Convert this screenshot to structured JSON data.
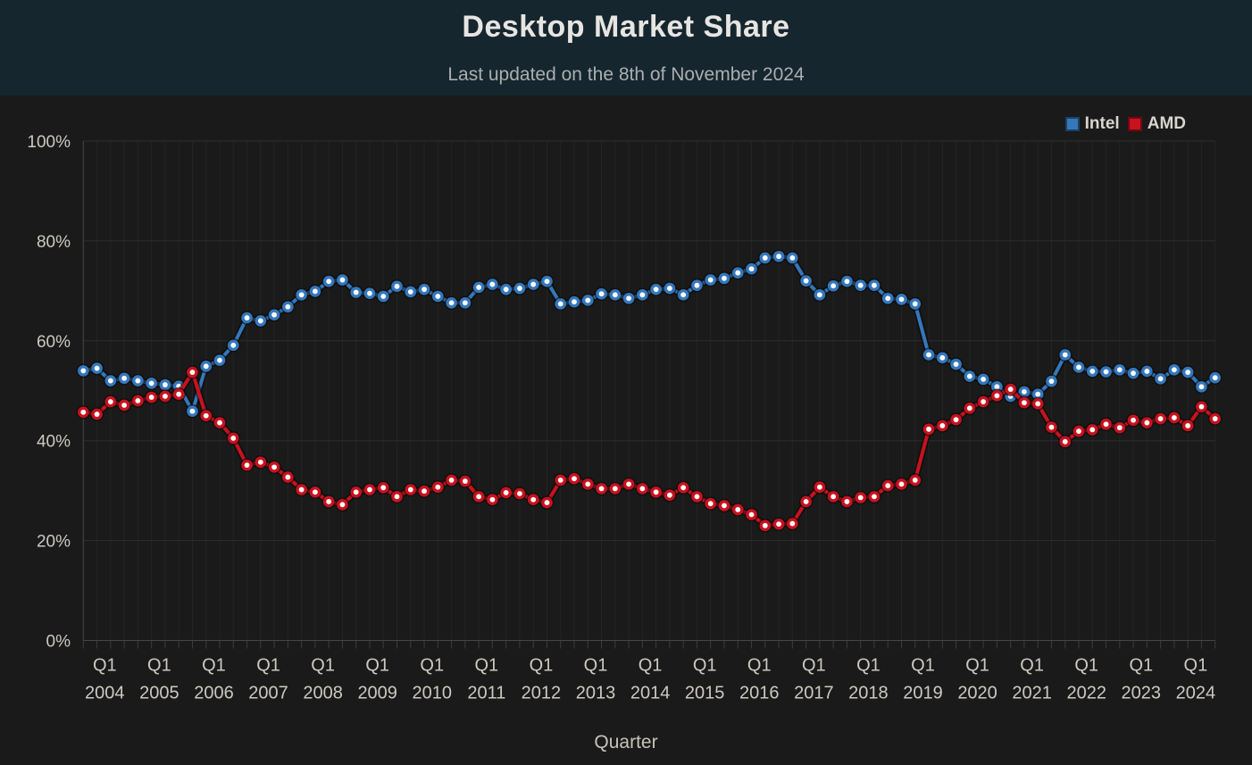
{
  "header": {
    "title": "Desktop Market Share",
    "subtitle": "Last updated on the 8th of November 2024"
  },
  "colors": {
    "header_bg": "#16262e",
    "chart_bg": "#1a1a1a",
    "grid_minor": "#242424",
    "grid_major": "#2d2d2d",
    "axis_line": "#454545",
    "tick_text": "#ccc9c1",
    "intel_blue": "#3577bb",
    "amd_red": "#c8121f"
  },
  "chart_data": {
    "type": "line",
    "title": "Desktop Market Share",
    "xlabel": "Quarter",
    "ylabel": "",
    "ylim": [
      0,
      100
    ],
    "y_tick_step": 20,
    "y_tick_labels": [
      "0%",
      "20%",
      "40%",
      "60%",
      "80%",
      "100%"
    ],
    "x_tick_every": 4,
    "grid": true,
    "legend_position": "top-right",
    "categories": [
      "2004 Q1",
      "2004 Q2",
      "2004 Q3",
      "2004 Q4",
      "2005 Q1",
      "2005 Q2",
      "2005 Q3",
      "2005 Q4",
      "2006 Q1",
      "2006 Q2",
      "2006 Q3",
      "2006 Q4",
      "2007 Q1",
      "2007 Q2",
      "2007 Q3",
      "2007 Q4",
      "2008 Q1",
      "2008 Q2",
      "2008 Q3",
      "2008 Q4",
      "2009 Q1",
      "2009 Q2",
      "2009 Q3",
      "2009 Q4",
      "2010 Q1",
      "2010 Q2",
      "2010 Q3",
      "2010 Q4",
      "2011 Q1",
      "2011 Q2",
      "2011 Q3",
      "2011 Q4",
      "2012 Q1",
      "2012 Q2",
      "2012 Q3",
      "2012 Q4",
      "2013 Q1",
      "2013 Q2",
      "2013 Q3",
      "2013 Q4",
      "2014 Q1",
      "2014 Q2",
      "2014 Q3",
      "2014 Q4",
      "2015 Q1",
      "2015 Q2",
      "2015 Q3",
      "2015 Q4",
      "2016 Q1",
      "2016 Q2",
      "2016 Q3",
      "2016 Q4",
      "2017 Q1",
      "2017 Q2",
      "2017 Q3",
      "2017 Q4",
      "2018 Q1",
      "2018 Q2",
      "2018 Q3",
      "2018 Q4",
      "2019 Q1",
      "2019 Q2",
      "2019 Q3",
      "2019 Q4",
      "2020 Q1",
      "2020 Q2",
      "2020 Q3",
      "2020 Q4",
      "2021 Q1",
      "2021 Q2",
      "2021 Q3",
      "2021 Q4",
      "2022 Q1",
      "2022 Q2",
      "2022 Q3",
      "2022 Q4",
      "2023 Q1",
      "2023 Q2",
      "2023 Q3",
      "2023 Q4",
      "2024 Q1",
      "2024 Q2",
      "2024 Q3",
      "2024 Q4"
    ],
    "series": [
      {
        "name": "Intel",
        "color": "#3577bb",
        "values": [
          54.0,
          54.5,
          52.0,
          52.5,
          52.0,
          51.5,
          51.2,
          50.9,
          45.9,
          54.9,
          56.1,
          59.1,
          64.6,
          64.0,
          65.2,
          66.8,
          69.2,
          69.9,
          71.9,
          72.2,
          69.7,
          69.5,
          68.9,
          70.9,
          69.8,
          70.3,
          68.9,
          67.6,
          67.6,
          70.7,
          71.3,
          70.3,
          70.5,
          71.3,
          71.9,
          67.4,
          67.8,
          68.1,
          69.4,
          69.2,
          68.5,
          69.2,
          70.3,
          70.5,
          69.2,
          71.1,
          72.2,
          72.5,
          73.6,
          74.4,
          76.6,
          76.9,
          76.6,
          72.0,
          69.2,
          71.0,
          71.9,
          71.1,
          71.1,
          68.5,
          68.3,
          67.4,
          57.2,
          56.6,
          55.3,
          52.9,
          52.3,
          50.8,
          48.9,
          49.8,
          49.3,
          51.9,
          57.2,
          54.7,
          53.9,
          53.8,
          54.2,
          53.5,
          53.9,
          52.4,
          54.2,
          53.7,
          50.8,
          52.6
        ]
      },
      {
        "name": "AMD",
        "color": "#c8121f",
        "values": [
          45.7,
          45.3,
          47.8,
          47.1,
          48.0,
          48.7,
          48.9,
          49.3,
          53.7,
          45.0,
          43.6,
          40.5,
          35.1,
          35.7,
          34.7,
          32.7,
          30.2,
          29.7,
          27.8,
          27.2,
          29.7,
          30.2,
          30.6,
          28.8,
          30.2,
          29.9,
          30.7,
          32.1,
          31.9,
          28.8,
          28.2,
          29.6,
          29.4,
          28.2,
          27.6,
          32.1,
          32.4,
          31.3,
          30.4,
          30.4,
          31.3,
          30.4,
          29.7,
          29.1,
          30.6,
          28.8,
          27.4,
          27.0,
          26.2,
          25.2,
          23.0,
          23.3,
          23.4,
          27.8,
          30.7,
          28.8,
          27.8,
          28.6,
          28.8,
          31.0,
          31.3,
          32.1,
          42.3,
          43.0,
          44.2,
          46.5,
          47.8,
          49.0,
          50.3,
          47.6,
          47.4,
          42.7,
          39.8,
          41.9,
          42.2,
          43.3,
          42.6,
          44.1,
          43.6,
          44.4,
          44.6,
          43.0,
          46.8,
          44.4
        ]
      }
    ]
  }
}
